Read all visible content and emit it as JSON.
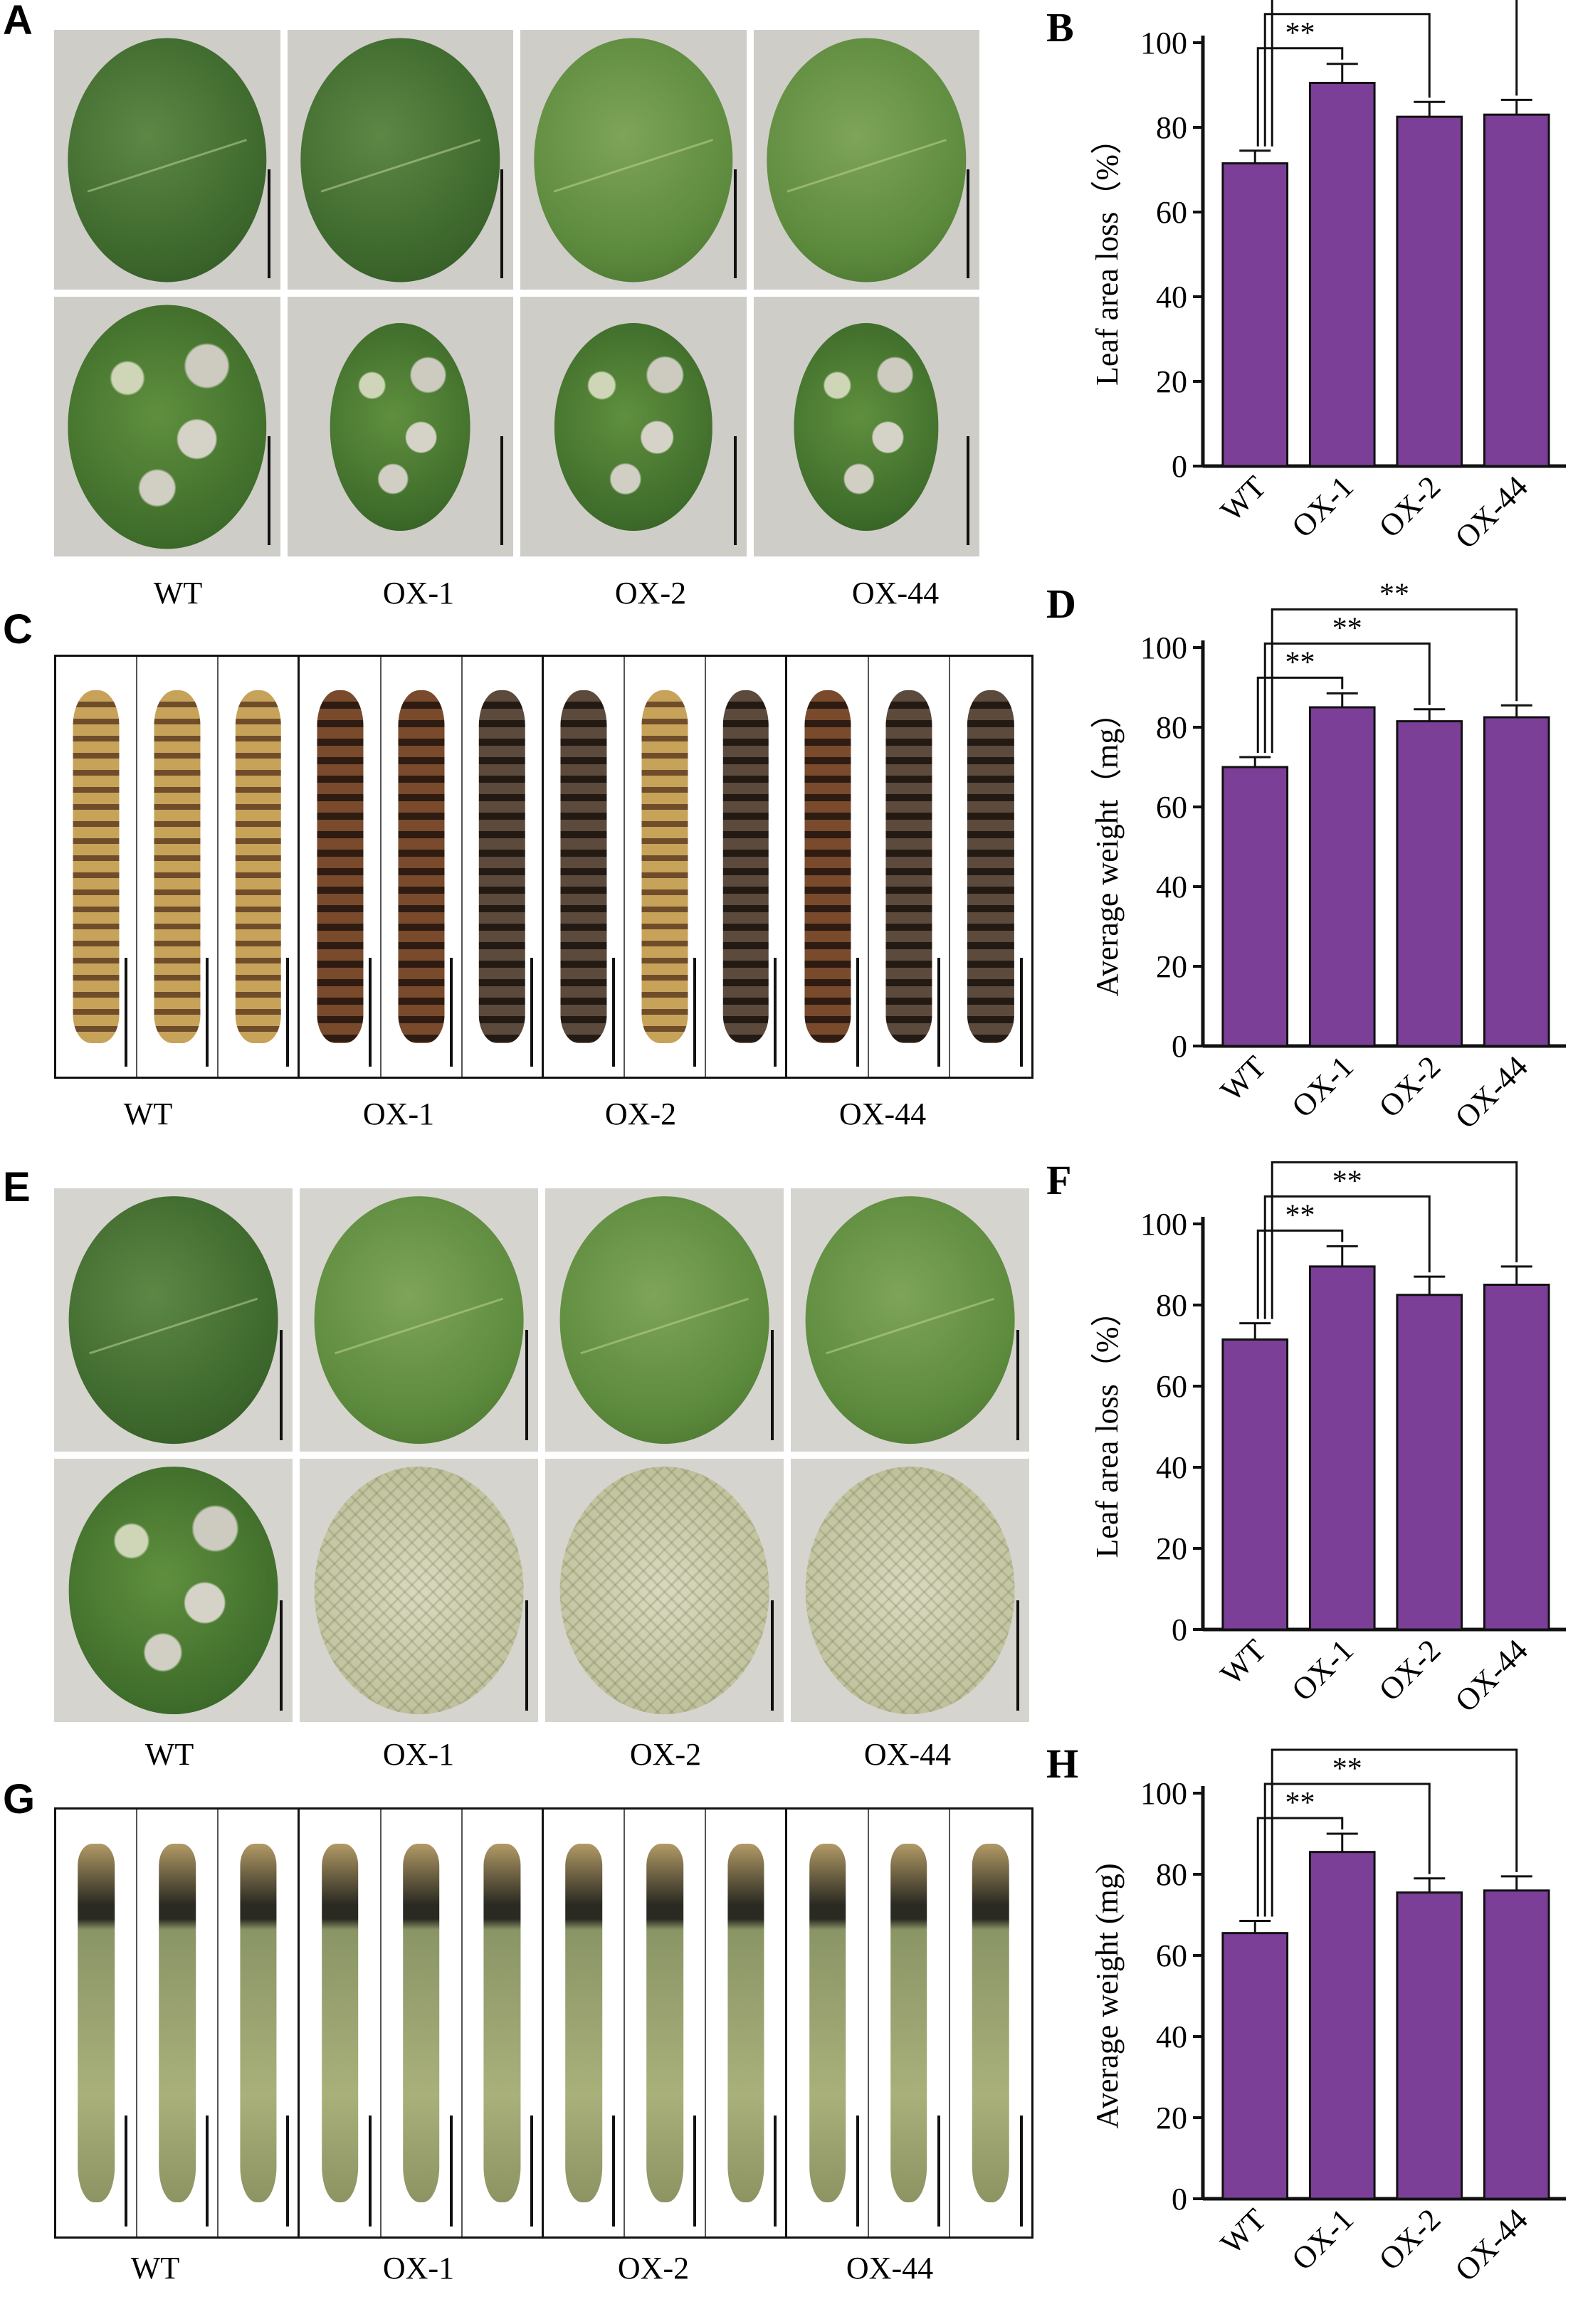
{
  "panels": {
    "A": {
      "letter": "A",
      "labels": [
        "WT",
        "OX-1",
        "OX-2",
        "OX-44"
      ]
    },
    "C": {
      "letter": "C",
      "labels": [
        "WT",
        "OX-1",
        "OX-2",
        "OX-44"
      ]
    },
    "E": {
      "letter": "E",
      "labels": [
        "WT",
        "OX-1",
        "OX-2",
        "OX-44"
      ]
    },
    "G": {
      "letter": "G",
      "labels": [
        "WT",
        "OX-1",
        "OX-2",
        "OX-44"
      ]
    }
  },
  "colors": {
    "bar": "#7b3f98",
    "axis": "#111111"
  },
  "chart_data": [
    {
      "panel": "B",
      "type": "bar",
      "categories": [
        "WT",
        "OX-1",
        "OX-2",
        "OX-44"
      ],
      "values": [
        71.5,
        90.5,
        82.5,
        83
      ],
      "errors": [
        3,
        4.5,
        3.5,
        3.5
      ],
      "ylabel": "Leaf area loss（%）",
      "ylim": [
        0,
        100
      ],
      "yticks": [
        0,
        20,
        40,
        60,
        80,
        100
      ],
      "significance": [
        "**",
        "**",
        "**"
      ]
    },
    {
      "panel": "D",
      "type": "bar",
      "categories": [
        "WT",
        "OX-1",
        "OX-2",
        "OX-44"
      ],
      "values": [
        70,
        85,
        81.5,
        82.5
      ],
      "errors": [
        2.5,
        3.5,
        3,
        3
      ],
      "ylabel": "Average  weight（mg）",
      "ylim": [
        0,
        100
      ],
      "yticks": [
        0,
        20,
        40,
        60,
        80,
        100
      ],
      "significance": [
        "**",
        "**",
        "**"
      ]
    },
    {
      "panel": "F",
      "type": "bar",
      "categories": [
        "WT",
        "OX-1",
        "OX-2",
        "OX-44"
      ],
      "values": [
        71.5,
        89.5,
        82.5,
        85
      ],
      "errors": [
        4,
        5,
        4.5,
        4.5
      ],
      "ylabel": "Leaf area loss（%）",
      "ylim": [
        0,
        100
      ],
      "yticks": [
        0,
        20,
        40,
        60,
        80,
        100
      ],
      "significance": [
        "**",
        "**",
        "**"
      ]
    },
    {
      "panel": "H",
      "type": "bar",
      "categories": [
        "WT",
        "OX-1",
        "OX-2",
        "OX-44"
      ],
      "values": [
        65.5,
        85.5,
        75.5,
        76
      ],
      "errors": [
        3,
        4.5,
        3.5,
        3.5
      ],
      "ylabel": "Average  weight (mg)",
      "ylim": [
        0,
        100
      ],
      "yticks": [
        0,
        20,
        40,
        60,
        80,
        100
      ],
      "significance": [
        "**",
        "**",
        "**"
      ]
    }
  ]
}
